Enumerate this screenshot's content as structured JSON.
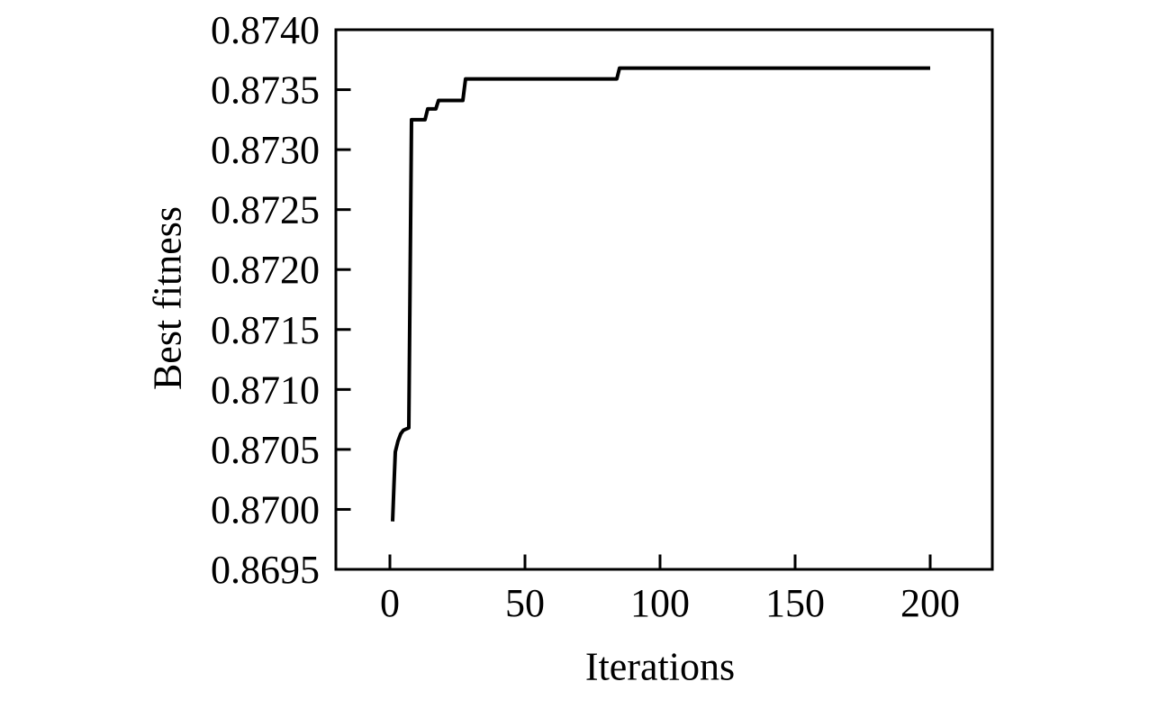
{
  "chart_data": {
    "type": "line",
    "title": "",
    "xlabel": "Iterations",
    "ylabel": "Best fitness",
    "xlim": [
      -20,
      223
    ],
    "ylim": [
      0.8695,
      0.874
    ],
    "xticks": [
      0,
      50,
      100,
      150,
      200
    ],
    "xtick_labels": [
      "0",
      "50",
      "100",
      "150",
      "200"
    ],
    "yticks": [
      0.8695,
      0.87,
      0.8705,
      0.871,
      0.8715,
      0.872,
      0.8725,
      0.873,
      0.8735,
      0.874
    ],
    "ytick_labels": [
      "0.8695",
      "0.8700",
      "0.8705",
      "0.8710",
      "0.8715",
      "0.8720",
      "0.8725",
      "0.8730",
      "0.8735",
      "0.8740"
    ],
    "grid": false,
    "legend": null,
    "line_color": "#000000",
    "axis_color": "#000000",
    "background": "#ffffff",
    "series": [
      {
        "name": "Best fitness",
        "points": [
          [
            1,
            0.8699
          ],
          [
            1.5,
            0.8702
          ],
          [
            2,
            0.87048
          ],
          [
            3,
            0.87057
          ],
          [
            4,
            0.87063
          ],
          [
            5,
            0.87066
          ],
          [
            7,
            0.87068
          ],
          [
            8,
            0.87325
          ],
          [
            13,
            0.87325
          ],
          [
            14,
            0.87334
          ],
          [
            17,
            0.87334
          ],
          [
            18,
            0.87341
          ],
          [
            27,
            0.87341
          ],
          [
            28,
            0.87359
          ],
          [
            84,
            0.87359
          ],
          [
            85,
            0.87368
          ],
          [
            200,
            0.87368
          ]
        ]
      }
    ]
  }
}
